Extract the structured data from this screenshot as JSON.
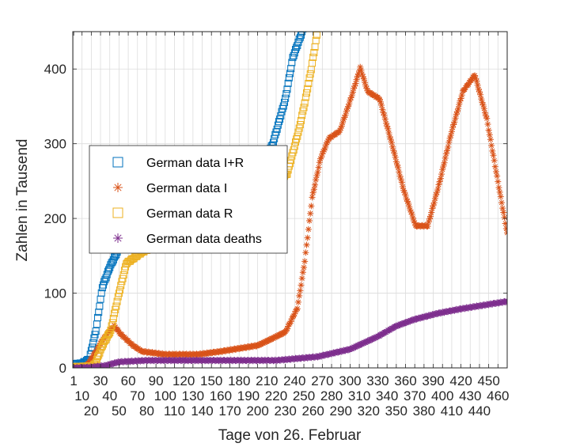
{
  "chart_data": {
    "type": "scatter",
    "title": "",
    "xlabel": "Tage von 26. Februar",
    "ylabel": "Zahlen in Tausend",
    "xlim": [
      0,
      470
    ],
    "ylim": [
      0,
      450
    ],
    "grid": true,
    "legend_placement": "center-left",
    "xticks": [
      1,
      10,
      20,
      30,
      40,
      50,
      60,
      70,
      80,
      90,
      100,
      110,
      120,
      130,
      140,
      150,
      160,
      170,
      180,
      190,
      200,
      210,
      220,
      230,
      240,
      250,
      260,
      270,
      280,
      290,
      300,
      310,
      320,
      330,
      340,
      350,
      360,
      370,
      380,
      390,
      400,
      410,
      420,
      430,
      440,
      450,
      460
    ],
    "yticks": [
      0,
      100,
      200,
      300,
      400
    ],
    "series": [
      {
        "name": "German data I+R",
        "marker": "square",
        "color": "#0072BD",
        "points": [
          [
            1,
            5
          ],
          [
            10,
            6
          ],
          [
            18,
            12
          ],
          [
            25,
            50
          ],
          [
            32,
            108
          ],
          [
            40,
            135
          ],
          [
            50,
            160
          ],
          [
            70,
            182
          ],
          [
            92,
            200
          ],
          [
            130,
            225
          ],
          [
            178,
            250
          ],
          [
            200,
            270
          ],
          [
            216,
            298
          ],
          [
            230,
            360
          ],
          [
            238,
            415
          ],
          [
            251,
            460
          ]
        ]
      },
      {
        "name": "German data I",
        "marker": "asterisk",
        "color": "#D95319",
        "points": [
          [
            1,
            1
          ],
          [
            15,
            3
          ],
          [
            24,
            20
          ],
          [
            32,
            37
          ],
          [
            40,
            50
          ],
          [
            45,
            56
          ],
          [
            52,
            45
          ],
          [
            65,
            30
          ],
          [
            75,
            22
          ],
          [
            100,
            18
          ],
          [
            135,
            18
          ],
          [
            160,
            22
          ],
          [
            180,
            26
          ],
          [
            200,
            30
          ],
          [
            212,
            37
          ],
          [
            230,
            48
          ],
          [
            243,
            80
          ],
          [
            251,
            143
          ],
          [
            259,
            228
          ],
          [
            268,
            280
          ],
          [
            277,
            307
          ],
          [
            289,
            317
          ],
          [
            302,
            365
          ],
          [
            311,
            402
          ],
          [
            319,
            370
          ],
          [
            332,
            360
          ],
          [
            345,
            301
          ],
          [
            358,
            238
          ],
          [
            371,
            190
          ],
          [
            384,
            190
          ],
          [
            397,
            249
          ],
          [
            409,
            312
          ],
          [
            422,
            370
          ],
          [
            435,
            392
          ],
          [
            448,
            333
          ],
          [
            460,
            249
          ],
          [
            470,
            180
          ]
        ]
      },
      {
        "name": "German data R",
        "marker": "square",
        "color": "#EDB120",
        "points": [
          [
            1,
            1
          ],
          [
            20,
            2
          ],
          [
            24,
            5
          ],
          [
            32,
            30
          ],
          [
            41,
            50
          ],
          [
            50,
            100
          ],
          [
            58,
            140
          ],
          [
            75,
            155
          ],
          [
            92,
            165
          ],
          [
            150,
            195
          ],
          [
            200,
            225
          ],
          [
            232,
            260
          ],
          [
            245,
            320
          ],
          [
            251,
            355
          ],
          [
            258,
            400
          ],
          [
            264,
            445
          ]
        ]
      },
      {
        "name": "German data deaths",
        "marker": "asterisk",
        "color": "#7E2F8E",
        "points": [
          [
            1,
            0
          ],
          [
            20,
            1
          ],
          [
            35,
            3
          ],
          [
            50,
            8
          ],
          [
            80,
            10
          ],
          [
            220,
            10
          ],
          [
            265,
            15
          ],
          [
            300,
            25
          ],
          [
            330,
            42
          ],
          [
            350,
            56
          ],
          [
            370,
            65
          ],
          [
            395,
            73
          ],
          [
            420,
            79
          ],
          [
            445,
            84
          ],
          [
            470,
            89
          ]
        ]
      }
    ]
  }
}
